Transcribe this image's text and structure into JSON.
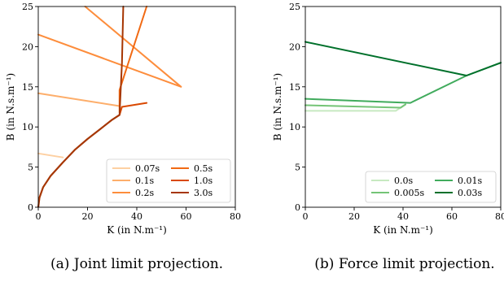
{
  "chart_data": [
    {
      "type": "line",
      "xlabel": "K (in N.m⁻¹)",
      "ylabel": "B (in N.s.m⁻¹)",
      "xlim": [
        0,
        80
      ],
      "ylim": [
        0,
        25
      ],
      "xticks": [
        0,
        20,
        40,
        60,
        80
      ],
      "yticks": [
        0,
        5,
        10,
        15,
        20,
        25
      ],
      "grid": false,
      "legend_position": "bottom-right",
      "legend_columns": 2,
      "caption": "(a) Joint limit projection.",
      "series": [
        {
          "name": "0.07s",
          "color": "#fdd0a2",
          "x": [
            0,
            10
          ],
          "y": [
            6.7,
            6.2
          ]
        },
        {
          "name": "0.1s",
          "color": "#fdae6b",
          "x": [
            0,
            33
          ],
          "y": [
            14.2,
            12.6
          ]
        },
        {
          "name": "0.2s",
          "color": "#fd8d3c",
          "x": [
            0,
            58,
            19
          ],
          "y": [
            21.5,
            15.0,
            25.0
          ]
        },
        {
          "name": "0.5s",
          "color": "#f16913",
          "x": [
            44,
            33,
            33
          ],
          "y": [
            25.0,
            14.6,
            11.8
          ]
        },
        {
          "name": "1.0s",
          "color": "#d94801",
          "x": [
            44,
            34,
            33
          ],
          "y": [
            13.0,
            12.5,
            11.5
          ]
        },
        {
          "name": "3.0s",
          "color": "#a63603",
          "x": [
            34.5,
            34,
            33
          ],
          "y": [
            25.0,
            18.0,
            11.5
          ]
        }
      ],
      "boundary_curve": {
        "color": "#a63603",
        "x": [
          0,
          0.5,
          2,
          5,
          10,
          15,
          20,
          25,
          30,
          33
        ],
        "y": [
          0,
          1.2,
          2.5,
          3.9,
          5.6,
          7.2,
          8.5,
          9.7,
          10.9,
          11.5
        ]
      }
    },
    {
      "type": "line",
      "xlabel": "K (in N.m⁻¹)",
      "ylabel": "B (in N.s.m⁻¹)",
      "xlim": [
        0,
        80
      ],
      "ylim": [
        0,
        25
      ],
      "xticks": [
        0,
        20,
        40,
        60,
        80
      ],
      "yticks": [
        0,
        5,
        10,
        15,
        20,
        25
      ],
      "grid": false,
      "legend_position": "bottom-right",
      "legend_columns": 2,
      "caption": "(b) Force limit projection.",
      "series": [
        {
          "name": "0.0s",
          "color": "#c7e9c0",
          "x": [
            0,
            37,
            41
          ],
          "y": [
            12.0,
            12.0,
            12.8
          ]
        },
        {
          "name": "0.005s",
          "color": "#74c476",
          "x": [
            0,
            39,
            41
          ],
          "y": [
            12.7,
            12.4,
            12.8
          ]
        },
        {
          "name": "0.01s",
          "color": "#41ab5d",
          "x": [
            0,
            43,
            66,
            80
          ],
          "y": [
            13.5,
            13.0,
            16.4,
            18.0
          ]
        },
        {
          "name": "0.03s",
          "color": "#00702b",
          "x": [
            0,
            66,
            80
          ],
          "y": [
            20.6,
            16.4,
            18.0
          ]
        }
      ]
    }
  ]
}
